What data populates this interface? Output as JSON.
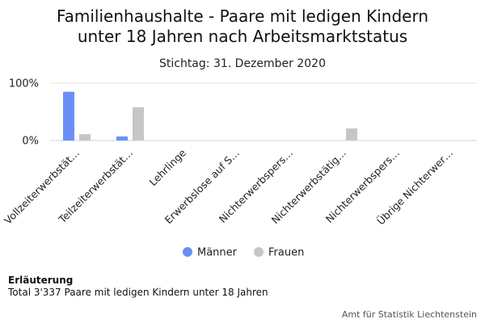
{
  "chart_data": {
    "type": "bar",
    "title_lines": [
      "Familienhaushalte - Paare mit ledigen Kindern",
      "unter 18 Jahren nach Arbeitsmarktstatus"
    ],
    "subtitle": "Stichtag: 31. Dezember 2020",
    "categories": [
      "Vollzeiterwerbstät…",
      "Teilzeiterwerbstät…",
      "Lehrlinge",
      "Erwerbslose auf S…",
      "Nichterwerbspers…",
      "Nichterwerbstätig…",
      "Nichterwerbspers…",
      "Übrige Nichterwer…"
    ],
    "series": [
      {
        "name": "Männer",
        "color": "#6a8ff7",
        "values": [
          85,
          7,
          0,
          0,
          0,
          0,
          0,
          0
        ]
      },
      {
        "name": "Frauen",
        "color": "#c6c6c6",
        "values": [
          11,
          58,
          0,
          0,
          0,
          21,
          0,
          0
        ]
      }
    ],
    "ylim": [
      0,
      100
    ],
    "yticks": [
      {
        "value": 0,
        "label": "0%"
      },
      {
        "value": 100,
        "label": "100%"
      }
    ],
    "grid": true,
    "legend": "bottom-center"
  },
  "note": {
    "title": "Erläuterung",
    "text": "Total 3'337 Paare mit ledigen Kindern unter 18 Jahren"
  },
  "credit": "Amt für Statistik Liechtenstein"
}
